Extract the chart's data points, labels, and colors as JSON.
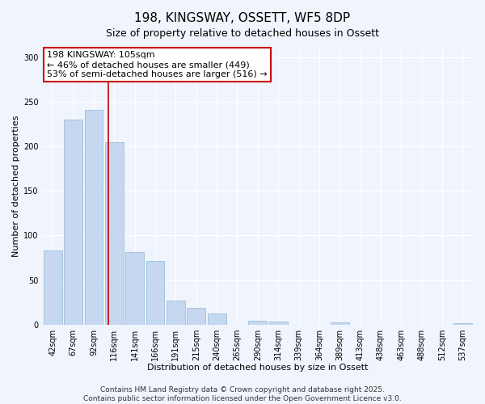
{
  "title": "198, KINGSWAY, OSSETT, WF5 8DP",
  "subtitle": "Size of property relative to detached houses in Ossett",
  "xlabel": "Distribution of detached houses by size in Ossett",
  "ylabel": "Number of detached properties",
  "categories": [
    "42sqm",
    "67sqm",
    "92sqm",
    "116sqm",
    "141sqm",
    "166sqm",
    "191sqm",
    "215sqm",
    "240sqm",
    "265sqm",
    "290sqm",
    "314sqm",
    "339sqm",
    "364sqm",
    "389sqm",
    "413sqm",
    "438sqm",
    "463sqm",
    "488sqm",
    "512sqm",
    "537sqm"
  ],
  "values": [
    83,
    230,
    241,
    205,
    81,
    71,
    27,
    19,
    12,
    0,
    4,
    3,
    0,
    0,
    2,
    0,
    0,
    0,
    0,
    0,
    1
  ],
  "bar_color": "#c5d8f0",
  "bar_edge_color": "#9bbedd",
  "vline_x_index": 2.72,
  "vline_color": "#cc0000",
  "annotation_line1": "198 KINGSWAY: 105sqm",
  "annotation_line2": "← 46% of detached houses are smaller (449)",
  "annotation_line3": "53% of semi-detached houses are larger (516) →",
  "annotation_box_facecolor": "#ffffff",
  "annotation_box_edgecolor": "#cc0000",
  "ylim": [
    0,
    310
  ],
  "yticks": [
    0,
    50,
    100,
    150,
    200,
    250,
    300
  ],
  "footer_line1": "Contains HM Land Registry data © Crown copyright and database right 2025.",
  "footer_line2": "Contains public sector information licensed under the Open Government Licence v3.0.",
  "fig_facecolor": "#f0f4fc",
  "plot_facecolor": "#f0f4fc",
  "grid_color": "#ffffff",
  "title_fontsize": 11,
  "axis_label_fontsize": 8,
  "tick_fontsize": 7,
  "annotation_fontsize": 8,
  "footer_fontsize": 6.5
}
